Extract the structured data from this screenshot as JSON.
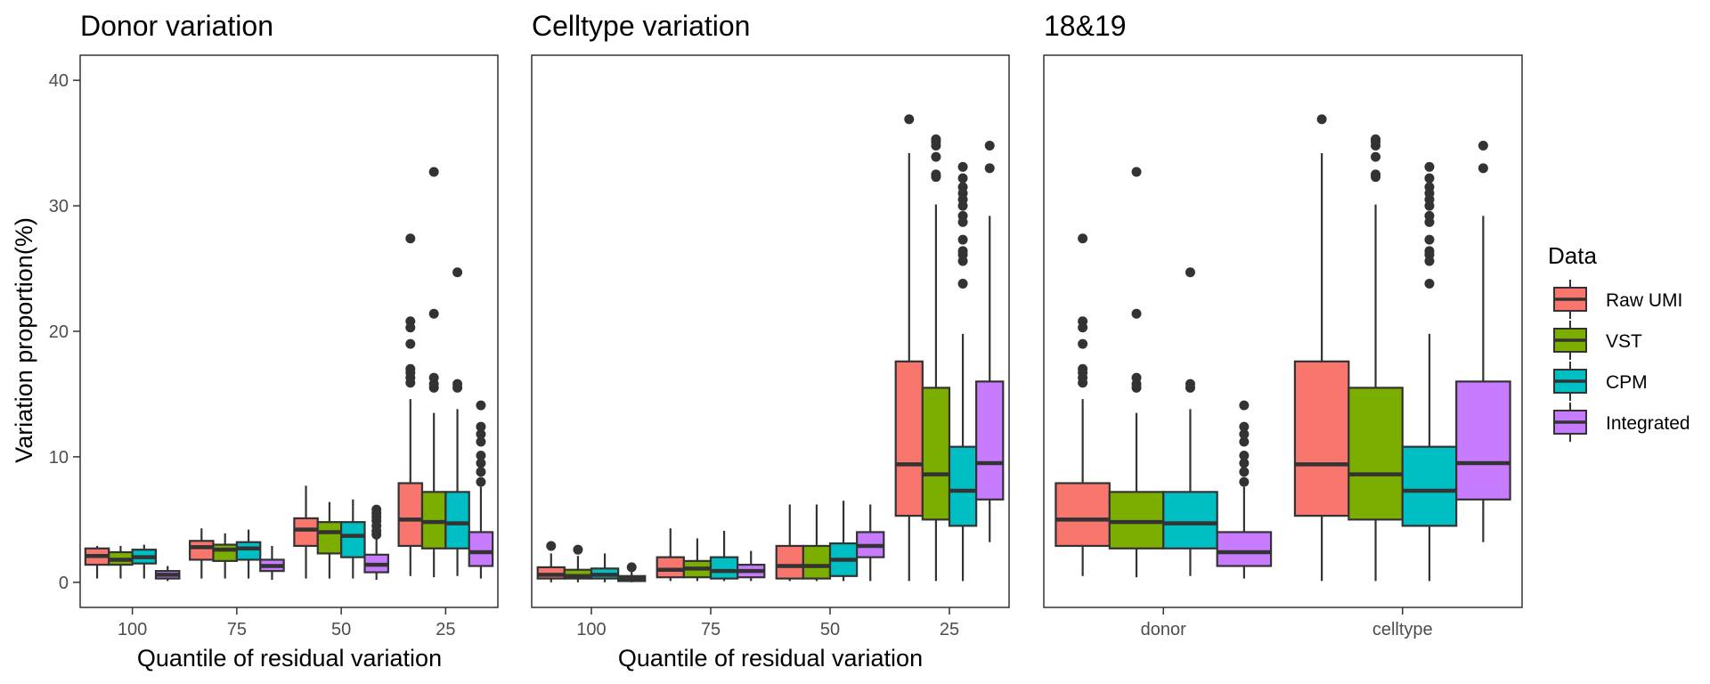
{
  "colors": {
    "Raw UMI": "#F8766D",
    "VST": "#7CAE00",
    "CPM": "#00BFC4",
    "Integrated": "#C77CFF",
    "outline": "#333333",
    "frame": "#333333"
  },
  "legend": {
    "title": "Data",
    "placement": "right",
    "items": [
      "Raw UMI",
      "VST",
      "CPM",
      "Integrated"
    ]
  },
  "chart_data": [
    {
      "type": "box",
      "title": "Donor variation",
      "xlabel": "Quantile of residual variation",
      "ylabel": "Variation proportion(%)",
      "ylim": [
        -2,
        42
      ],
      "yticks": [
        0,
        10,
        20,
        30,
        40
      ],
      "grid": false,
      "categories": [
        "100",
        "75",
        "50",
        "25"
      ],
      "series": [
        {
          "name": "Raw UMI",
          "boxes": [
            {
              "lower": 0.3,
              "q1": 1.4,
              "median": 2.1,
              "q3": 2.7,
              "upper": 2.9,
              "outliers": []
            },
            {
              "lower": 0.3,
              "q1": 1.8,
              "median": 2.8,
              "q3": 3.3,
              "upper": 4.3,
              "outliers": []
            },
            {
              "lower": 0.3,
              "q1": 2.9,
              "median": 4.2,
              "q3": 5.1,
              "upper": 7.7,
              "outliers": []
            },
            {
              "lower": 0.5,
              "q1": 2.9,
              "median": 5.0,
              "q3": 7.9,
              "upper": 14.6,
              "outliers": [
                15.9,
                16.3,
                16.7,
                17.0,
                19.0,
                20.3,
                20.8,
                27.4
              ]
            }
          ]
        },
        {
          "name": "VST",
          "boxes": [
            {
              "lower": 0.3,
              "q1": 1.4,
              "median": 1.8,
              "q3": 2.4,
              "upper": 2.9,
              "outliers": []
            },
            {
              "lower": 0.3,
              "q1": 1.7,
              "median": 2.6,
              "q3": 3.0,
              "upper": 3.9,
              "outliers": []
            },
            {
              "lower": 0.3,
              "q1": 2.3,
              "median": 4.0,
              "q3": 4.8,
              "upper": 6.4,
              "outliers": []
            },
            {
              "lower": 0.4,
              "q1": 2.7,
              "median": 4.8,
              "q3": 7.2,
              "upper": 13.5,
              "outliers": [
                15.5,
                15.8,
                16.3,
                21.4,
                32.7
              ]
            }
          ]
        },
        {
          "name": "CPM",
          "boxes": [
            {
              "lower": 0.3,
              "q1": 1.5,
              "median": 2.0,
              "q3": 2.6,
              "upper": 3.0,
              "outliers": []
            },
            {
              "lower": 0.3,
              "q1": 1.8,
              "median": 2.7,
              "q3": 3.2,
              "upper": 4.2,
              "outliers": []
            },
            {
              "lower": 0.3,
              "q1": 2.0,
              "median": 3.7,
              "q3": 4.8,
              "upper": 6.6,
              "outliers": []
            },
            {
              "lower": 0.5,
              "q1": 2.7,
              "median": 4.7,
              "q3": 7.2,
              "upper": 13.8,
              "outliers": [
                15.5,
                15.8,
                24.7
              ]
            }
          ]
        },
        {
          "name": "Integrated",
          "boxes": [
            {
              "lower": 0.1,
              "q1": 0.3,
              "median": 0.6,
              "q3": 0.9,
              "upper": 1.3,
              "outliers": []
            },
            {
              "lower": 0.2,
              "q1": 0.9,
              "median": 1.3,
              "q3": 1.8,
              "upper": 2.9,
              "outliers": []
            },
            {
              "lower": 0.2,
              "q1": 0.8,
              "median": 1.4,
              "q3": 2.2,
              "upper": 3.6,
              "outliers": [
                3.8,
                4.1,
                4.5,
                4.9,
                5.2,
                5.5,
                5.8
              ]
            },
            {
              "lower": 0.3,
              "q1": 1.3,
              "median": 2.4,
              "q3": 4.0,
              "upper": 7.6,
              "outliers": [
                8.0,
                8.8,
                9.5,
                10.1,
                11.2,
                11.8,
                12.4,
                14.1
              ]
            }
          ]
        }
      ]
    },
    {
      "type": "box",
      "title": "Celltype variation",
      "xlabel": "Quantile of residual variation",
      "ylabel": "",
      "ylim": [
        -2,
        42
      ],
      "grid": false,
      "categories": [
        "100",
        "75",
        "50",
        "25"
      ],
      "series": [
        {
          "name": "Raw UMI",
          "boxes": [
            {
              "lower": 0.0,
              "q1": 0.3,
              "median": 0.6,
              "q3": 1.2,
              "upper": 2.3,
              "outliers": [
                2.9
              ]
            },
            {
              "lower": 0.1,
              "q1": 0.4,
              "median": 1.0,
              "q3": 2.0,
              "upper": 4.3,
              "outliers": []
            },
            {
              "lower": 0.1,
              "q1": 0.3,
              "median": 1.3,
              "q3": 2.9,
              "upper": 6.2,
              "outliers": []
            },
            {
              "lower": 0.1,
              "q1": 5.3,
              "median": 9.4,
              "q3": 17.6,
              "upper": 34.2,
              "outliers": [
                36.9
              ]
            }
          ]
        },
        {
          "name": "VST",
          "boxes": [
            {
              "lower": 0.0,
              "q1": 0.3,
              "median": 0.5,
              "q3": 1.0,
              "upper": 2.1,
              "outliers": [
                2.6
              ]
            },
            {
              "lower": 0.1,
              "q1": 0.4,
              "median": 1.1,
              "q3": 1.7,
              "upper": 3.5,
              "outliers": []
            },
            {
              "lower": 0.1,
              "q1": 0.3,
              "median": 1.3,
              "q3": 2.9,
              "upper": 6.2,
              "outliers": []
            },
            {
              "lower": 0.1,
              "q1": 5.0,
              "median": 8.6,
              "q3": 15.5,
              "upper": 30.1,
              "outliers": [
                32.3,
                32.5,
                33.9,
                34.8,
                35.1,
                35.3
              ]
            }
          ]
        },
        {
          "name": "CPM",
          "boxes": [
            {
              "lower": 0.0,
              "q1": 0.3,
              "median": 0.6,
              "q3": 1.1,
              "upper": 2.3,
              "outliers": []
            },
            {
              "lower": 0.1,
              "q1": 0.3,
              "median": 0.9,
              "q3": 2.0,
              "upper": 4.1,
              "outliers": []
            },
            {
              "lower": 0.1,
              "q1": 0.5,
              "median": 1.8,
              "q3": 3.1,
              "upper": 6.5,
              "outliers": []
            },
            {
              "lower": 0.1,
              "q1": 4.5,
              "median": 7.3,
              "q3": 10.8,
              "upper": 19.8,
              "outliers": [
                23.8,
                25.6,
                26.1,
                26.4,
                27.3,
                28.7,
                29.2,
                30.0,
                30.5,
                31.0,
                31.5,
                32.2,
                33.1
              ]
            }
          ]
        },
        {
          "name": "Integrated",
          "boxes": [
            {
              "lower": 0.0,
              "q1": 0.1,
              "median": 0.3,
              "q3": 0.5,
              "upper": 1.0,
              "outliers": [
                1.2
              ]
            },
            {
              "lower": 0.1,
              "q1": 0.4,
              "median": 0.9,
              "q3": 1.4,
              "upper": 2.5,
              "outliers": []
            },
            {
              "lower": 0.1,
              "q1": 2.0,
              "median": 2.9,
              "q3": 4.0,
              "upper": 6.2,
              "outliers": []
            },
            {
              "lower": 3.2,
              "q1": 6.6,
              "median": 9.5,
              "q3": 16.0,
              "upper": 29.2,
              "outliers": [
                33.0,
                34.8
              ]
            }
          ]
        }
      ]
    },
    {
      "type": "box",
      "title": "18&19",
      "xlabel": "",
      "ylabel": "",
      "ylim": [
        -2,
        42
      ],
      "grid": false,
      "categories": [
        "donor",
        "celltype"
      ],
      "series": [
        {
          "name": "Raw UMI",
          "boxes": [
            {
              "lower": 0.5,
              "q1": 2.9,
              "median": 5.0,
              "q3": 7.9,
              "upper": 14.6,
              "outliers": [
                15.9,
                16.3,
                16.7,
                17.0,
                19.0,
                20.3,
                20.8,
                27.4
              ]
            },
            {
              "lower": 0.1,
              "q1": 5.3,
              "median": 9.4,
              "q3": 17.6,
              "upper": 34.2,
              "outliers": [
                36.9
              ]
            }
          ]
        },
        {
          "name": "VST",
          "boxes": [
            {
              "lower": 0.4,
              "q1": 2.7,
              "median": 4.8,
              "q3": 7.2,
              "upper": 13.5,
              "outliers": [
                15.5,
                15.8,
                16.3,
                21.4,
                32.7
              ]
            },
            {
              "lower": 0.1,
              "q1": 5.0,
              "median": 8.6,
              "q3": 15.5,
              "upper": 30.1,
              "outliers": [
                32.3,
                32.5,
                33.9,
                34.8,
                35.1,
                35.3
              ]
            }
          ]
        },
        {
          "name": "CPM",
          "boxes": [
            {
              "lower": 0.5,
              "q1": 2.7,
              "median": 4.7,
              "q3": 7.2,
              "upper": 13.8,
              "outliers": [
                15.5,
                15.8,
                24.7
              ]
            },
            {
              "lower": 0.1,
              "q1": 4.5,
              "median": 7.3,
              "q3": 10.8,
              "upper": 19.8,
              "outliers": [
                23.8,
                25.6,
                26.1,
                26.4,
                27.3,
                28.7,
                29.2,
                30.0,
                30.5,
                31.0,
                31.5,
                32.2,
                33.1
              ]
            }
          ]
        },
        {
          "name": "Integrated",
          "boxes": [
            {
              "lower": 0.3,
              "q1": 1.3,
              "median": 2.4,
              "q3": 4.0,
              "upper": 7.6,
              "outliers": [
                8.0,
                8.8,
                9.5,
                10.1,
                11.2,
                11.8,
                12.4,
                14.1
              ]
            },
            {
              "lower": 3.2,
              "q1": 6.6,
              "median": 9.5,
              "q3": 16.0,
              "upper": 29.2,
              "outliers": [
                33.0,
                34.8
              ]
            }
          ]
        }
      ]
    }
  ]
}
